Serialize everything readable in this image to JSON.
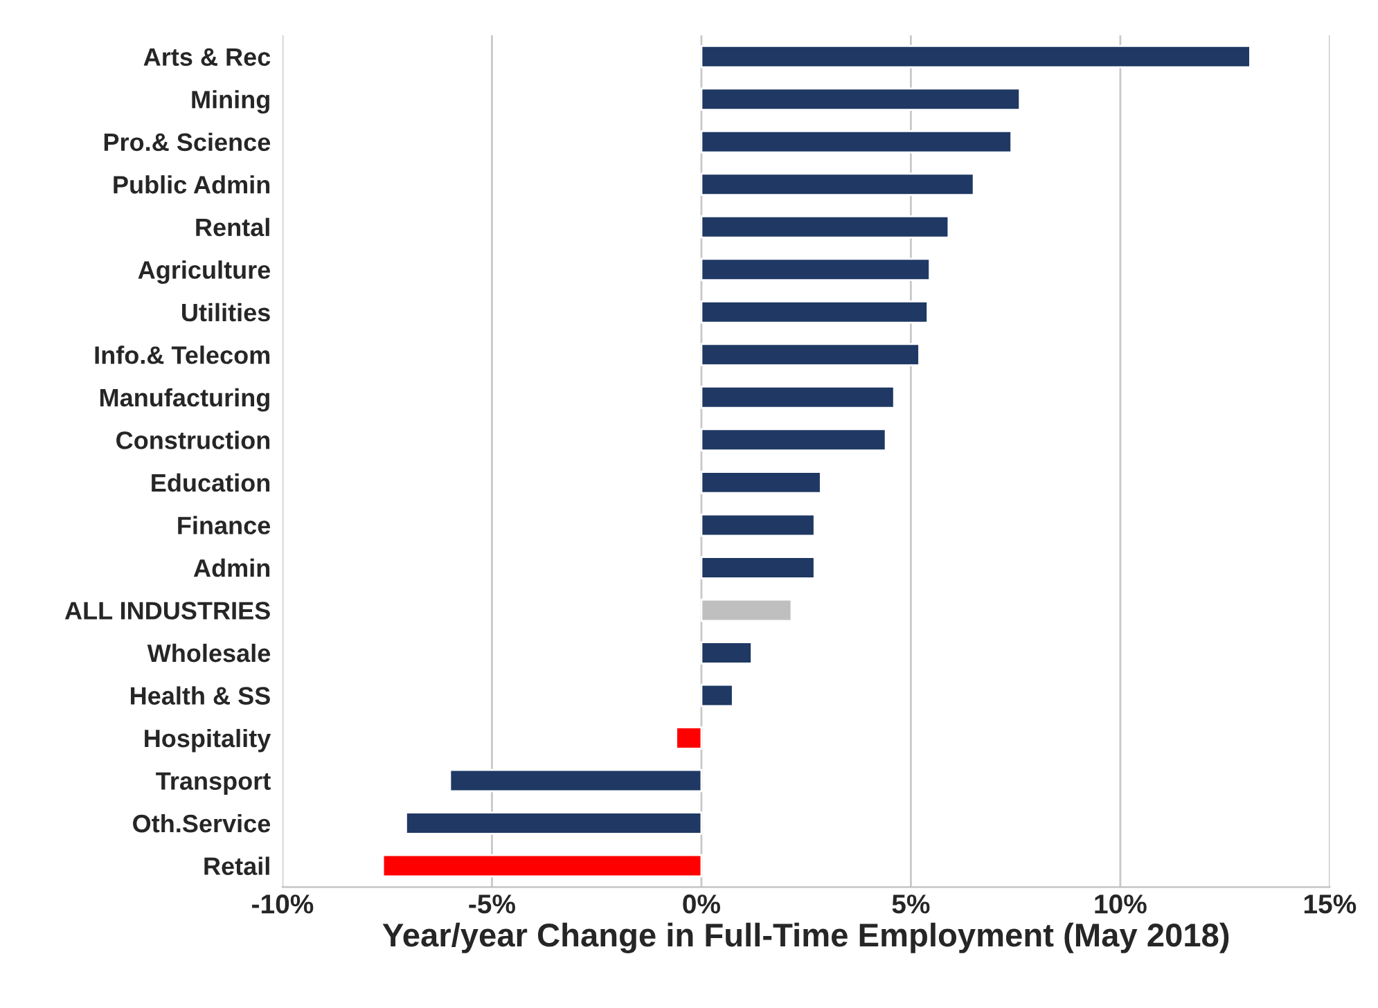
{
  "chart_data": {
    "type": "bar",
    "orientation": "horizontal",
    "xlabel": "Year/year Change in Full-Time Employment (May 2018)",
    "categories": [
      "Arts & Rec",
      "Mining",
      "Pro.& Science",
      "Public Admin",
      "Rental",
      "Agriculture",
      "Utilities",
      "Info.& Telecom",
      "Manufacturing",
      "Construction",
      "Education",
      "Finance",
      "Admin",
      "ALL INDUSTRIES",
      "Wholesale",
      "Health & SS",
      "Hospitality",
      "Transport",
      "Oth.Service",
      "Retail"
    ],
    "values": [
      13.1,
      7.6,
      7.4,
      6.5,
      5.9,
      5.45,
      5.4,
      5.2,
      4.6,
      4.4,
      2.85,
      2.7,
      2.7,
      2.15,
      1.2,
      0.75,
      -0.6,
      -6.0,
      -7.05,
      -7.6
    ],
    "colors": [
      "#1f3864",
      "#1f3864",
      "#1f3864",
      "#1f3864",
      "#1f3864",
      "#1f3864",
      "#1f3864",
      "#1f3864",
      "#1f3864",
      "#1f3864",
      "#1f3864",
      "#1f3864",
      "#1f3864",
      "#bfbfbf",
      "#1f3864",
      "#1f3864",
      "#ff0000",
      "#1f3864",
      "#1f3864",
      "#ff0000"
    ],
    "xlim": [
      -10,
      15
    ],
    "xticks": [
      {
        "value": -10,
        "label": "-10%"
      },
      {
        "value": -5,
        "label": "-5%"
      },
      {
        "value": 0,
        "label": "0%"
      },
      {
        "value": 5,
        "label": "5%"
      },
      {
        "value": 10,
        "label": "10%"
      },
      {
        "value": 15,
        "label": "15%"
      }
    ],
    "grid": "x",
    "legend": false
  }
}
